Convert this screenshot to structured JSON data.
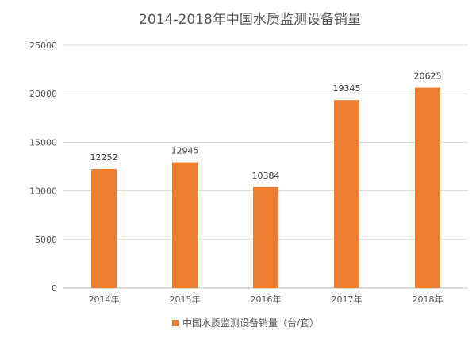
{
  "chart_data": {
    "type": "bar",
    "title": "2014-2018年中国水质监测设备销量",
    "categories": [
      "2014年",
      "2015年",
      "2016年",
      "2017年",
      "2018年"
    ],
    "series": [
      {
        "name": "中国水质监测设备销量（台/套）",
        "values": [
          12252,
          12945,
          10384,
          19345,
          20625
        ]
      }
    ],
    "ylim": [
      0,
      25000
    ],
    "yticks": [
      0,
      5000,
      10000,
      15000,
      20000,
      25000
    ],
    "grid": true,
    "legend": "bottom",
    "bar_color": "#ED7D31"
  }
}
